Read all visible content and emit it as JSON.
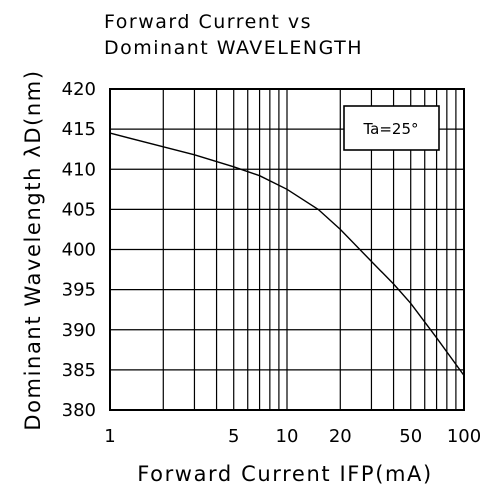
{
  "chart_data": {
    "type": "line",
    "title_lines": [
      "Forward Current vs",
      "Dominant WAVELENGTH"
    ],
    "xlabel": "Forward Current IFP(mA)",
    "ylabel": "Dominant Wavelength λD(nm)",
    "x_scale": "log",
    "xlim": [
      1,
      100
    ],
    "ylim": [
      380,
      420
    ],
    "x_ticks": [
      {
        "value": 1,
        "label": "1"
      },
      {
        "value": 5,
        "label": "5"
      },
      {
        "value": 10,
        "label": "10"
      },
      {
        "value": 20,
        "label": "20"
      },
      {
        "value": 50,
        "label": "50"
      },
      {
        "value": 100,
        "label": "100"
      }
    ],
    "y_ticks": [
      420,
      415,
      410,
      405,
      400,
      395,
      390,
      385,
      380
    ],
    "grid": true,
    "annotation": "Ta=25°",
    "series": [
      {
        "x": [
          1,
          2,
          3,
          5,
          7,
          10,
          15,
          20,
          30,
          40,
          50,
          70,
          100
        ],
        "y": [
          414.5,
          412.8,
          411.8,
          410.3,
          409.2,
          407.5,
          405.0,
          402.5,
          398.5,
          395.7,
          393.3,
          389.0,
          384.3
        ]
      }
    ]
  }
}
